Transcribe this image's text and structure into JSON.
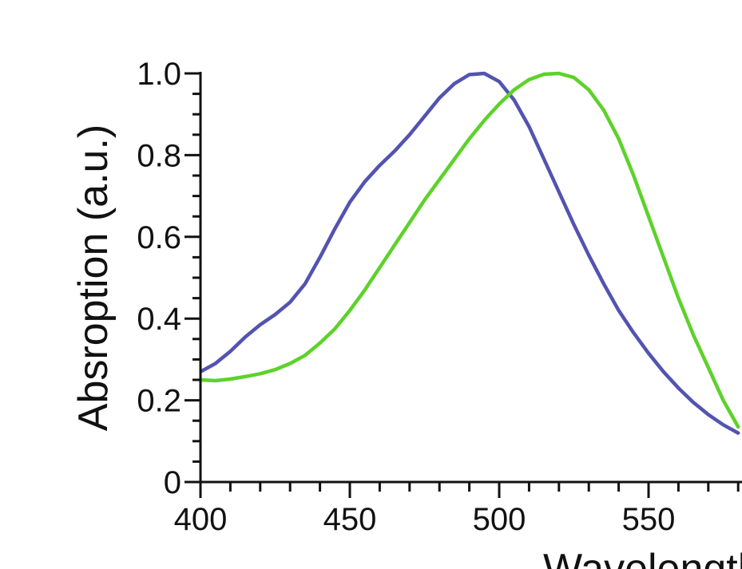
{
  "chart_data": {
    "type": "line",
    "title": "",
    "xlabel": "Wavelength",
    "ylabel": "Absroption (a.u.)",
    "xlim": [
      400,
      580
    ],
    "ylim": [
      0,
      1.0
    ],
    "x_ticks": [
      400,
      450,
      500,
      550
    ],
    "x_tick_labels": [
      "400",
      "450",
      "500",
      "550"
    ],
    "y_ticks": [
      0,
      0.2,
      0.4,
      0.6,
      0.8,
      1.0
    ],
    "y_tick_labels": [
      "0",
      "0.2",
      "0.4",
      "0.6",
      "0.8",
      "1.0"
    ],
    "grid": false,
    "series": [
      {
        "color": "#5353b0",
        "x": [
          400,
          405,
          410,
          415,
          420,
          425,
          430,
          435,
          440,
          445,
          450,
          455,
          460,
          465,
          470,
          475,
          480,
          485,
          490,
          495,
          500,
          505,
          510,
          515,
          520,
          525,
          530,
          535,
          540,
          545,
          550,
          555,
          560,
          565,
          570,
          575,
          580
        ],
        "y": [
          0.27,
          0.29,
          0.32,
          0.355,
          0.385,
          0.41,
          0.44,
          0.485,
          0.55,
          0.62,
          0.685,
          0.735,
          0.775,
          0.81,
          0.85,
          0.895,
          0.94,
          0.975,
          0.997,
          1.0,
          0.98,
          0.935,
          0.87,
          0.79,
          0.71,
          0.63,
          0.555,
          0.485,
          0.42,
          0.365,
          0.315,
          0.27,
          0.23,
          0.195,
          0.165,
          0.14,
          0.12
        ]
      },
      {
        "color": "#5dd22a",
        "x": [
          400,
          405,
          410,
          415,
          420,
          425,
          430,
          435,
          440,
          445,
          450,
          455,
          460,
          465,
          470,
          475,
          480,
          485,
          490,
          495,
          500,
          505,
          510,
          515,
          520,
          525,
          530,
          535,
          540,
          545,
          550,
          555,
          560,
          565,
          570,
          575,
          580
        ],
        "y": [
          0.25,
          0.248,
          0.252,
          0.258,
          0.265,
          0.275,
          0.29,
          0.31,
          0.34,
          0.375,
          0.42,
          0.47,
          0.525,
          0.58,
          0.635,
          0.69,
          0.74,
          0.79,
          0.84,
          0.885,
          0.925,
          0.96,
          0.985,
          0.998,
          1.0,
          0.99,
          0.96,
          0.91,
          0.84,
          0.75,
          0.65,
          0.55,
          0.45,
          0.36,
          0.28,
          0.2,
          0.135
        ]
      }
    ]
  }
}
